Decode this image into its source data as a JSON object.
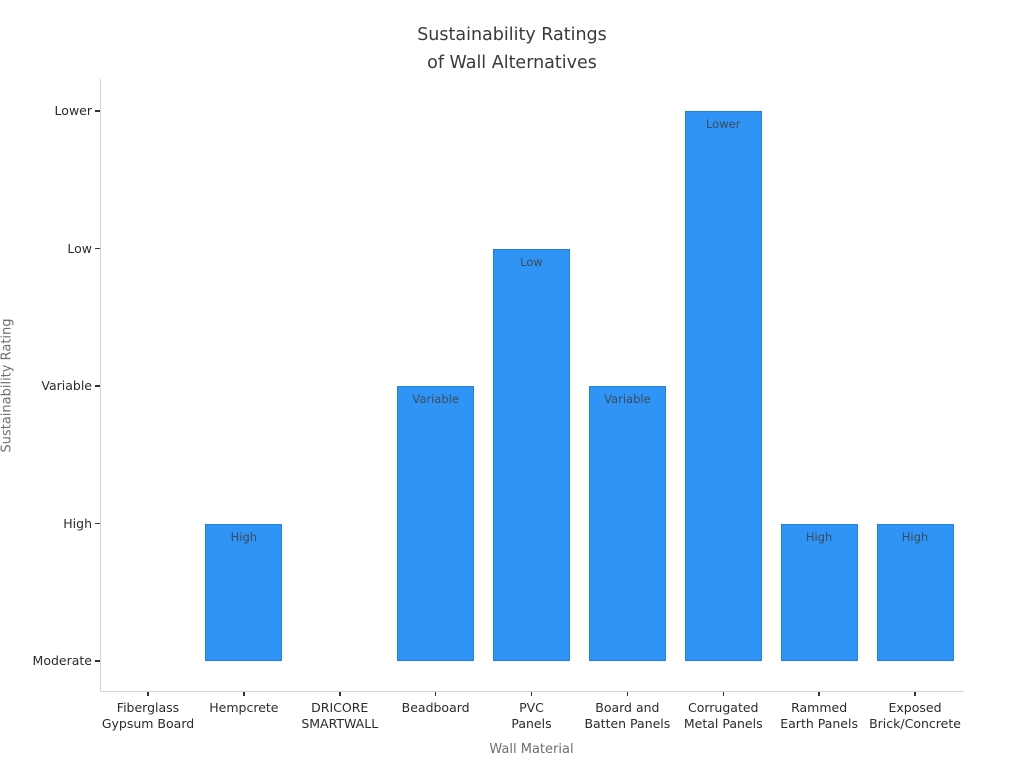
{
  "title": {
    "line1": "Sustainability Ratings",
    "line2": "of Wall Alternatives"
  },
  "chart_data": {
    "type": "bar",
    "title": "Sustainability Ratings\nof Wall Alternatives",
    "xlabel": "Wall Material",
    "ylabel": "Sustainability Rating",
    "categories": [
      "Fiberglass Gypsum Board",
      "Hempcrete",
      "DRICORE SMARTWALL",
      "Beadboard",
      "PVC Panels",
      "Board and Batten Panels",
      "Corrugated Metal Panels",
      "Rammed Earth Panels",
      "Exposed Brick/Concrete"
    ],
    "category_lines": [
      [
        "Fiberglass",
        "Gypsum Board"
      ],
      [
        "Hempcrete"
      ],
      [
        "DRICORE",
        "SMARTWALL"
      ],
      [
        "Beadboard"
      ],
      [
        "PVC",
        "Panels"
      ],
      [
        "Board and",
        "Batten Panels"
      ],
      [
        "Corrugated",
        "Metal Panels"
      ],
      [
        "Rammed",
        "Earth Panels"
      ],
      [
        "Exposed",
        "Brick/Concrete"
      ]
    ],
    "ratings": [
      "Moderate",
      "High",
      "Moderate",
      "Variable",
      "Low",
      "Variable",
      "Lower",
      "High",
      "High"
    ],
    "values": [
      0,
      1,
      0,
      2,
      3,
      2,
      4,
      1,
      1
    ],
    "y_tick_labels": [
      "Moderate",
      "High",
      "Variable",
      "Low",
      "Lower"
    ],
    "bar_color": "#2F94F6",
    "bar_label_color": "#3B4C58",
    "axis_text_color": "#2B2B2B",
    "axis_title_color": "#6F6F6F",
    "title_color": "#3A3A3A",
    "spine_color": "#D4D4D4",
    "background": "#FFFFFF",
    "ylim": [
      -0.22,
      4.23
    ],
    "grid": false,
    "legend": null,
    "note": "Bars with rating Moderate (value 0) have zero height and no visible bar or label"
  }
}
